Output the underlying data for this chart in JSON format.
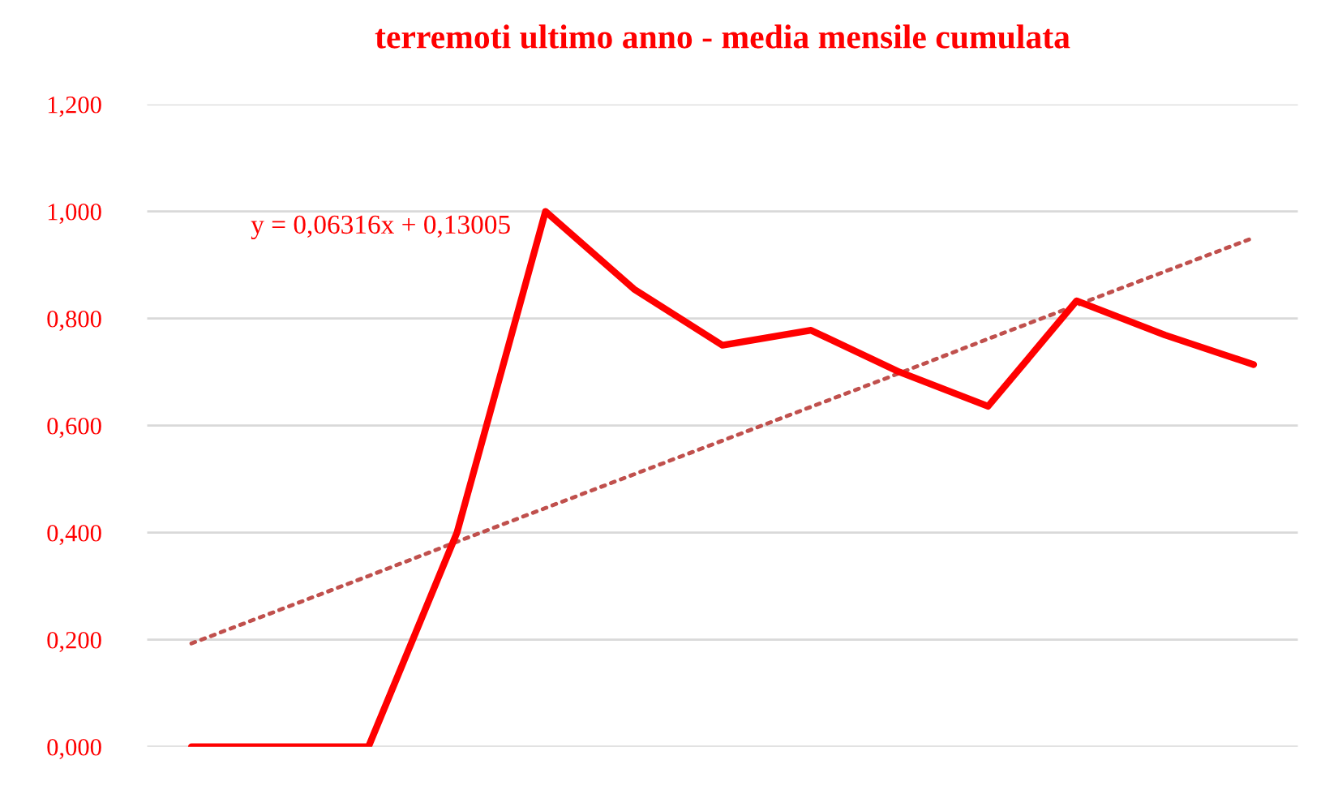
{
  "chart_data": {
    "type": "line",
    "title": "terremoti ultimo anno - media mensile cumulata",
    "categories": [
      null,
      null,
      null,
      null,
      null,
      null,
      null,
      null,
      null,
      null,
      null,
      null,
      null
    ],
    "series": [
      {
        "color": "#ff0000",
        "values": [
          0,
          0,
          0,
          0.4,
          1.0,
          0.855,
          0.75,
          0.778,
          0.7,
          0.636,
          0.833,
          0.769,
          0.714
        ],
        "line_style": "solid"
      },
      {
        "color": "#c0504d",
        "values": [
          0.193,
          0.256,
          0.319,
          0.383,
          0.446,
          0.509,
          0.572,
          0.635,
          0.698,
          0.762,
          0.825,
          0.888,
          0.951
        ],
        "line_style": "dotted"
      }
    ],
    "annotations": [
      "y = 0,06316x + 0,13005"
    ],
    "ylim": [
      0,
      1.2
    ],
    "yticks": [
      {
        "value": 0,
        "label": "0,000"
      },
      {
        "value": 0.2,
        "label": "0,200"
      },
      {
        "value": 0.4,
        "label": "0,400"
      },
      {
        "value": 0.6,
        "label": "0,600"
      },
      {
        "value": 0.8,
        "label": "0,800"
      },
      {
        "value": 1.0,
        "label": "1,000"
      },
      {
        "value": 1.2,
        "label": "1,200"
      }
    ],
    "grid": "y",
    "legend": false,
    "marker": "none"
  }
}
